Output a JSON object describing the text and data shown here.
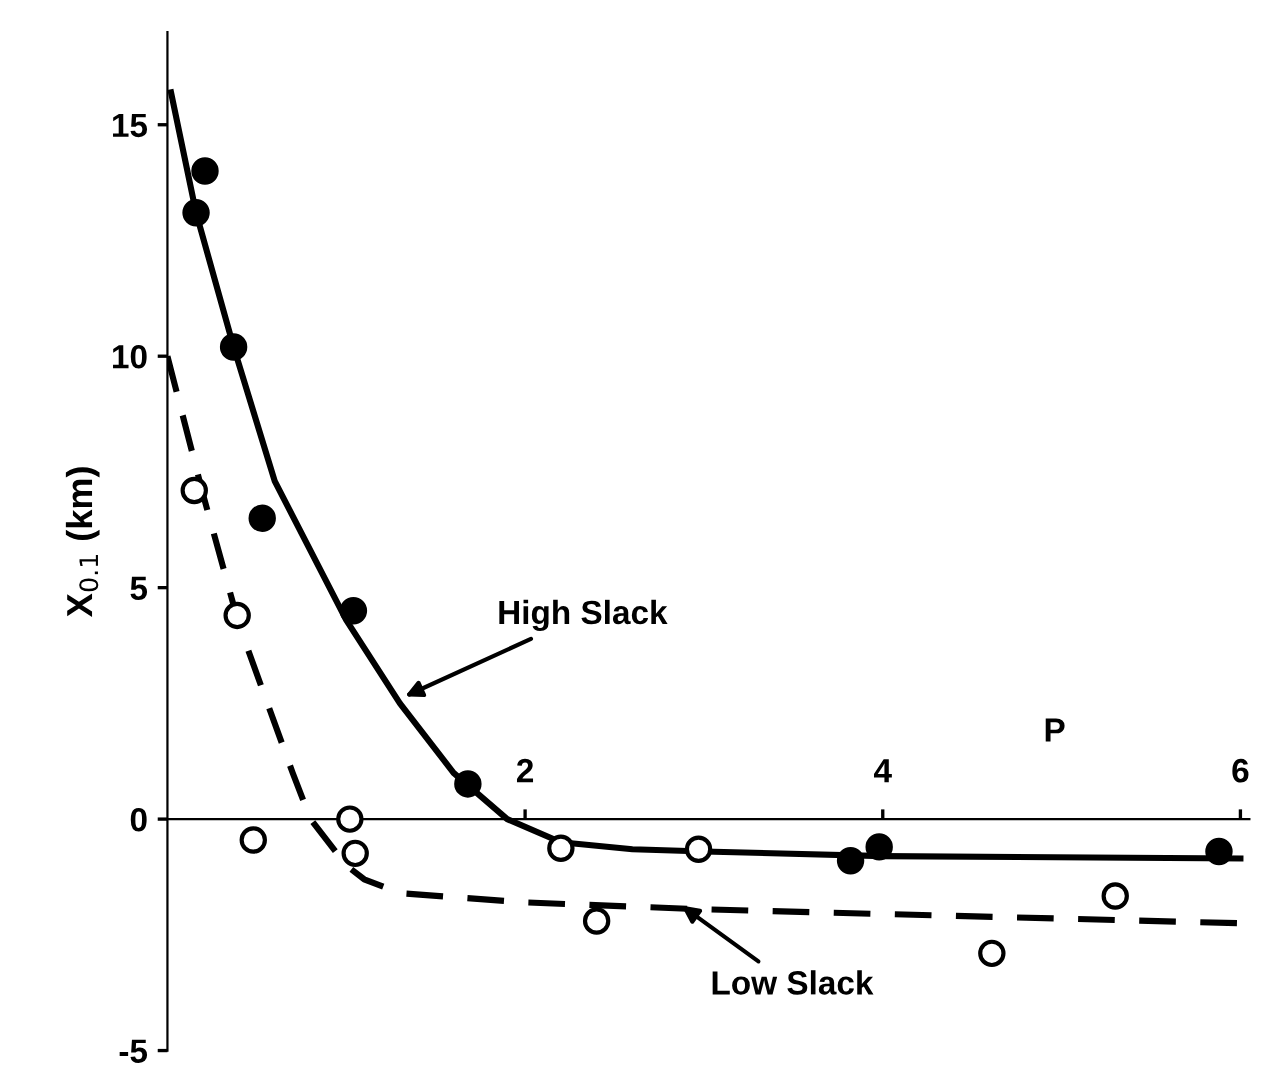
{
  "chart_data": {
    "type": "scatter",
    "xlabel": "P",
    "ylabel": "X$_{0.1}$ (km)",
    "xlim": [
      0,
      6.05
    ],
    "ylim": [
      -5,
      17
    ],
    "xticks": [
      2,
      4,
      6
    ],
    "yticks": [
      -5,
      0,
      5,
      10,
      15
    ],
    "grid": false,
    "legend": false,
    "series": [
      {
        "type": "line",
        "color": "#000000",
        "marker": "none",
        "line_style": "solid",
        "x": [
          0.02,
          0.16,
          0.37,
          0.6,
          1.0,
          1.3,
          1.6,
          1.9,
          2.2,
          2.6,
          3.0,
          4.0,
          6.0
        ],
        "values": [
          15.7,
          13.1,
          10.2,
          7.3,
          4.3,
          2.5,
          1.0,
          0.0,
          -0.5,
          -0.65,
          -0.7,
          -0.8,
          -0.85
        ]
      },
      {
        "type": "line",
        "color": "#000000",
        "marker": "none",
        "line_style": "dashed",
        "x": [
          0.0,
          0.2,
          0.4,
          0.7,
          0.8,
          1.0,
          1.1,
          1.3,
          2.0,
          3.0,
          4.0,
          5.0,
          6.0
        ],
        "values": [
          10.0,
          7.0,
          4.2,
          1.0,
          0.0,
          -1.0,
          -1.3,
          -1.6,
          -1.8,
          -1.95,
          -2.05,
          -2.15,
          -2.25
        ]
      },
      {
        "color": "#000000",
        "marker": "circle",
        "x": [
          0.21,
          0.16,
          0.37,
          0.53,
          1.04,
          1.68,
          3.82,
          3.98,
          5.88
        ],
        "values": [
          14.0,
          13.1,
          10.2,
          6.5,
          4.5,
          0.76,
          -0.9,
          -0.6,
          -0.7
        ]
      },
      {
        "color": "#ffffff",
        "marker": "circle",
        "x": [
          0.15,
          0.39,
          0.48,
          1.02,
          1.05,
          2.2,
          2.4,
          2.97,
          4.61,
          5.3
        ],
        "values": [
          7.1,
          4.4,
          -0.45,
          0.0,
          -0.74,
          -0.63,
          -2.2,
          -0.65,
          -2.9,
          -1.66
        ]
      }
    ],
    "annotations": [
      {
        "text": "High Slack",
        "x": 1.3,
        "y": 2.6
      },
      {
        "text": "Low Slack",
        "x": 2.85,
        "y": -1.8
      }
    ]
  }
}
